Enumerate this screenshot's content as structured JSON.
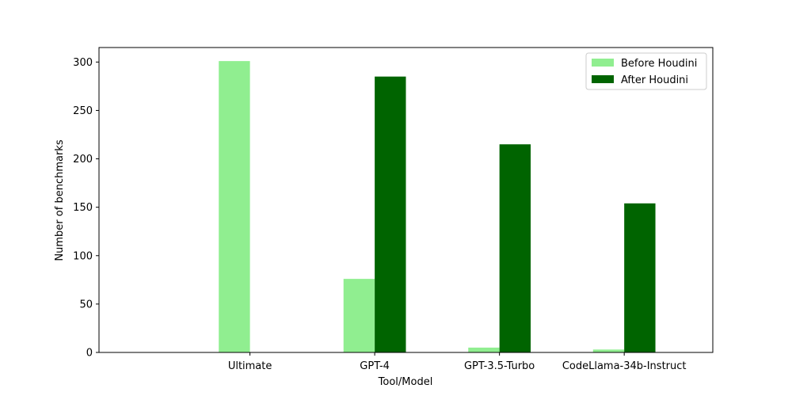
{
  "chart_data": {
    "type": "bar",
    "title": "",
    "xlabel": "Tool/Model",
    "ylabel": "Number of benchmarks",
    "categories": [
      "Ultimate",
      "GPT-4",
      "GPT-3.5-Turbo",
      "CodeLlama-34b-Instruct"
    ],
    "series": [
      {
        "name": "Before Houdini",
        "color": "#90ee90",
        "values": [
          301,
          76,
          5,
          3
        ]
      },
      {
        "name": "After Houdini",
        "color": "#006400",
        "values": [
          0,
          285,
          215,
          154
        ]
      }
    ],
    "ylim": [
      0,
      315
    ],
    "yticks": [
      0,
      50,
      100,
      150,
      200,
      250,
      300
    ],
    "grid": false,
    "legend_position": "top-right"
  }
}
